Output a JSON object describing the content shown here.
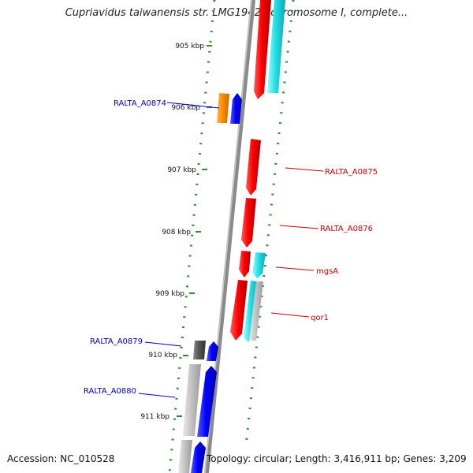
{
  "title": "Cupriavidus taiwanensis str. LMG19424 chromosome I, complete...",
  "footer": {
    "accession": "Accession: NC_010528",
    "info": "Topology: circular; Length: 3,416,911 bp; Genes: 3,209"
  },
  "ticks": [
    "905 kbp",
    "906 kbp",
    "907 kbp",
    "908 kbp",
    "909 kbp",
    "910 kbp",
    "911 kbp"
  ],
  "gene_labels": {
    "ralta_a0874": "RALTA_A0874",
    "ralta_a0875": "RALTA_A0875",
    "ralta_a0876": "RALTA_A0876",
    "mgsA": "mgsA",
    "qor1": "qor1",
    "ralta_a0879": "RALTA_A0879",
    "ralta_a0880": "RALTA_A0880"
  },
  "colors": {
    "forward_label": "#cc0000",
    "reverse_label": "#0000cc",
    "tick": "#2e8b2e",
    "backbone": "#8a8a8a"
  }
}
